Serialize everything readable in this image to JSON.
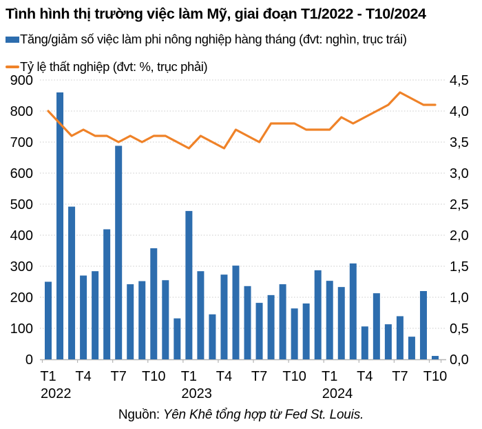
{
  "title": "Tình hình thị trường việc làm Mỹ, giai đoạn T1/2022 - T10/2024",
  "legend": {
    "bars": {
      "label": "Tăng/giảm số việc làm phi nông nghiệp hàng tháng (đvt: nghìn, trục trái)",
      "color": "#2D6DAE"
    },
    "line": {
      "label": "Tỷ lệ thất nghiệp (đvt: %, trục phải)",
      "color": "#EF8228"
    }
  },
  "source": {
    "prefix": "Nguồn:",
    "text": " Yên Khê tổng hợp từ Fed St. Louis."
  },
  "colors": {
    "bar": "#2D6DAE",
    "line": "#EF8228",
    "gridline": "#c9c9c9",
    "axis": "#b5b5b5",
    "text": "#000000"
  },
  "chart_data": {
    "type": "bar+line",
    "title": "Tình hình thị trường việc làm Mỹ, giai đoạn T1/2022 - T10/2024",
    "x": [
      "T1/2022",
      "T2/2022",
      "T3/2022",
      "T4/2022",
      "T5/2022",
      "T6/2022",
      "T7/2022",
      "T8/2022",
      "T9/2022",
      "T10/2022",
      "T11/2022",
      "T12/2022",
      "T1/2023",
      "T2/2023",
      "T3/2023",
      "T4/2023",
      "T5/2023",
      "T6/2023",
      "T7/2023",
      "T8/2023",
      "T9/2023",
      "T10/2023",
      "T11/2023",
      "T12/2023",
      "T1/2024",
      "T2/2024",
      "T3/2024",
      "T4/2024",
      "T5/2024",
      "T6/2024",
      "T7/2024",
      "T8/2024",
      "T9/2024",
      "T10/2024"
    ],
    "series": [
      {
        "name": "Tăng/giảm số việc làm phi nông nghiệp hàng tháng (đvt: nghìn, trục trái)",
        "type": "bar",
        "axis": "left",
        "unit": "nghìn",
        "color": "#2D6DAE",
        "values": [
          250,
          860,
          492,
          270,
          284,
          419,
          688,
          242,
          252,
          358,
          255,
          132,
          478,
          284,
          145,
          273,
          302,
          236,
          182,
          207,
          242,
          164,
          180,
          287,
          253,
          233,
          309,
          106,
          213,
          113,
          139,
          73,
          220,
          11
        ]
      },
      {
        "name": "Tỷ lệ thất nghiệp (đvt: %, trục phải)",
        "type": "line",
        "axis": "right",
        "unit": "%",
        "color": "#EF8228",
        "values": [
          4.0,
          3.8,
          3.6,
          3.7,
          3.6,
          3.6,
          3.5,
          3.6,
          3.5,
          3.6,
          3.6,
          3.5,
          3.4,
          3.6,
          3.5,
          3.4,
          3.7,
          3.6,
          3.5,
          3.8,
          3.8,
          3.8,
          3.7,
          3.7,
          3.7,
          3.9,
          3.8,
          3.9,
          4.0,
          4.1,
          4.3,
          4.2,
          4.1,
          4.1
        ]
      }
    ],
    "left_axis": {
      "range": [
        0,
        900
      ],
      "tick_step": 100,
      "tick_labels_top_down": [
        "900",
        "800",
        "700",
        "600",
        "500",
        "400",
        "300",
        "200",
        "100",
        "0"
      ]
    },
    "right_axis": {
      "range": [
        0,
        4.5
      ],
      "tick_step": 0.5,
      "tick_labels_top_down": [
        "4,5",
        "4,0",
        "3,5",
        "3,0",
        "2,5",
        "2,0",
        "1,5",
        "1,0",
        "0,5",
        "0,0"
      ]
    },
    "x_ticks": [
      {
        "index": 0,
        "label": "T1",
        "year": "2022"
      },
      {
        "index": 3,
        "label": "T4"
      },
      {
        "index": 6,
        "label": "T7"
      },
      {
        "index": 9,
        "label": "T10"
      },
      {
        "index": 12,
        "label": "T1",
        "year": "2023"
      },
      {
        "index": 15,
        "label": "T4"
      },
      {
        "index": 18,
        "label": "T7"
      },
      {
        "index": 21,
        "label": "T10"
      },
      {
        "index": 24,
        "label": "T1",
        "year": "2024"
      },
      {
        "index": 27,
        "label": "T4"
      },
      {
        "index": 30,
        "label": "T7"
      },
      {
        "index": 33,
        "label": "T10"
      }
    ],
    "grid": "horizontal dotted",
    "legend_position": "top-left"
  }
}
